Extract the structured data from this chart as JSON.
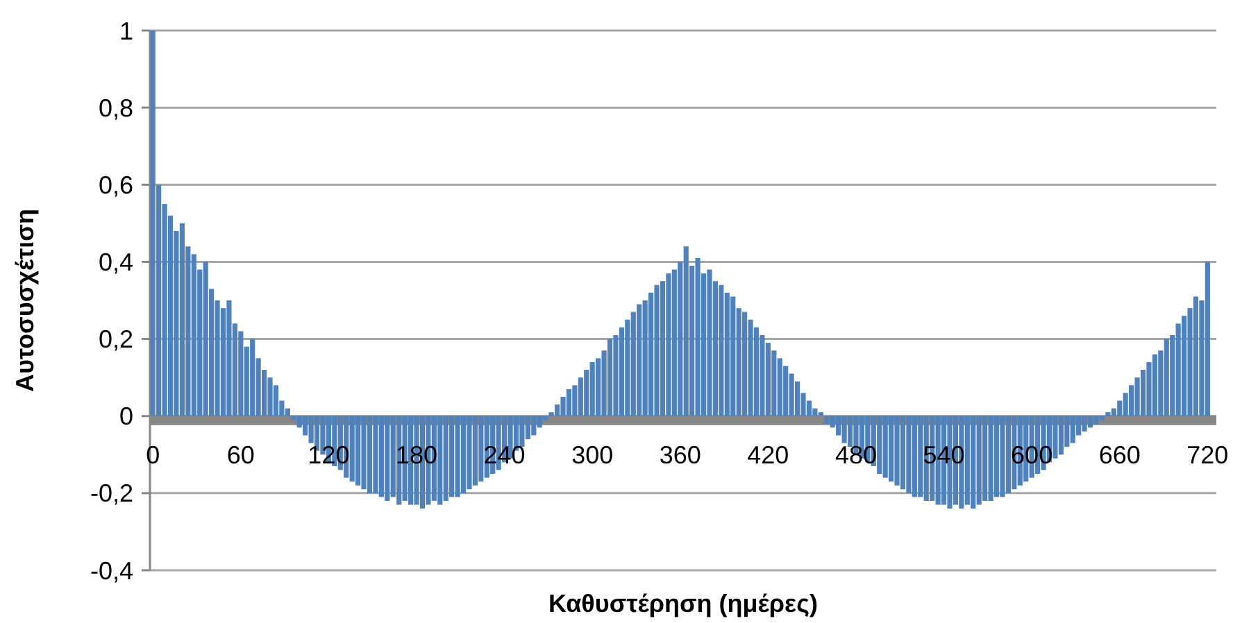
{
  "chart_data": {
    "type": "bar",
    "xlabel": "Καθυστέρηση (ημέρες)",
    "ylabel": "Αυτοσυσχέτιση",
    "x": [
      0,
      4,
      8,
      12,
      16,
      20,
      24,
      28,
      32,
      36,
      40,
      44,
      48,
      52,
      56,
      60,
      64,
      68,
      72,
      76,
      80,
      84,
      88,
      92,
      96,
      100,
      104,
      108,
      112,
      116,
      120,
      124,
      128,
      132,
      136,
      140,
      144,
      148,
      152,
      156,
      160,
      164,
      168,
      172,
      176,
      180,
      184,
      188,
      192,
      196,
      200,
      204,
      208,
      212,
      216,
      220,
      224,
      228,
      232,
      236,
      240,
      244,
      248,
      252,
      256,
      260,
      264,
      268,
      272,
      276,
      280,
      284,
      288,
      292,
      296,
      300,
      304,
      308,
      312,
      316,
      320,
      324,
      328,
      332,
      336,
      340,
      344,
      348,
      352,
      356,
      360,
      364,
      368,
      372,
      376,
      380,
      384,
      388,
      392,
      396,
      400,
      404,
      408,
      412,
      416,
      420,
      424,
      428,
      432,
      436,
      440,
      444,
      448,
      452,
      456,
      460,
      464,
      468,
      472,
      476,
      480,
      484,
      488,
      492,
      496,
      500,
      504,
      508,
      512,
      516,
      520,
      524,
      528,
      532,
      536,
      540,
      544,
      548,
      552,
      556,
      560,
      564,
      568,
      572,
      576,
      580,
      584,
      588,
      592,
      596,
      600,
      604,
      608,
      612,
      616,
      620,
      624,
      628,
      632,
      636,
      640,
      644,
      648,
      652,
      656,
      660,
      664,
      668,
      672,
      676,
      680,
      684,
      688,
      692,
      696,
      700,
      704,
      708,
      712,
      716,
      720
    ],
    "values": [
      1,
      0.6,
      0.55,
      0.52,
      0.48,
      0.5,
      0.44,
      0.42,
      0.38,
      0.4,
      0.33,
      0.3,
      0.28,
      0.3,
      0.24,
      0.22,
      0.18,
      0.2,
      0.15,
      0.12,
      0.1,
      0.08,
      0.04,
      0.02,
      -0.01,
      -0.03,
      -0.05,
      -0.07,
      -0.09,
      -0.1,
      -0.12,
      -0.13,
      -0.14,
      -0.16,
      -0.17,
      -0.18,
      -0.19,
      -0.2,
      -0.2,
      -0.21,
      -0.22,
      -0.21,
      -0.23,
      -0.22,
      -0.23,
      -0.23,
      -0.24,
      -0.23,
      -0.22,
      -0.23,
      -0.22,
      -0.21,
      -0.21,
      -0.2,
      -0.19,
      -0.18,
      -0.17,
      -0.16,
      -0.15,
      -0.14,
      -0.12,
      -0.11,
      -0.09,
      -0.08,
      -0.06,
      -0.05,
      -0.03,
      -0.01,
      0.01,
      0.03,
      0.05,
      0.07,
      0.08,
      0.1,
      0.12,
      0.14,
      0.15,
      0.17,
      0.2,
      0.21,
      0.23,
      0.25,
      0.27,
      0.29,
      0.3,
      0.32,
      0.34,
      0.35,
      0.37,
      0.38,
      0.4,
      0.44,
      0.39,
      0.41,
      0.37,
      0.38,
      0.35,
      0.34,
      0.32,
      0.31,
      0.28,
      0.27,
      0.25,
      0.23,
      0.21,
      0.19,
      0.17,
      0.15,
      0.13,
      0.11,
      0.09,
      0.06,
      0.04,
      0.02,
      0.01,
      -0.02,
      -0.03,
      -0.05,
      -0.07,
      -0.08,
      -0.1,
      -0.11,
      -0.12,
      -0.13,
      -0.15,
      -0.16,
      -0.17,
      -0.18,
      -0.19,
      -0.2,
      -0.21,
      -0.21,
      -0.22,
      -0.22,
      -0.23,
      -0.23,
      -0.24,
      -0.23,
      -0.24,
      -0.23,
      -0.24,
      -0.23,
      -0.22,
      -0.22,
      -0.21,
      -0.21,
      -0.2,
      -0.19,
      -0.18,
      -0.17,
      -0.16,
      -0.15,
      -0.14,
      -0.12,
      -0.11,
      -0.1,
      -0.08,
      -0.07,
      -0.05,
      -0.04,
      -0.03,
      -0.02,
      -0.01,
      0.01,
      0.02,
      0.04,
      0.06,
      0.08,
      0.1,
      0.12,
      0.14,
      0.16,
      0.17,
      0.2,
      0.21,
      0.24,
      0.26,
      0.28,
      0.31,
      0.3,
      0.4
    ],
    "color": "#4f81bd",
    "xlim": [
      -2,
      726
    ],
    "xticks": [
      0,
      60,
      120,
      180,
      240,
      300,
      360,
      420,
      480,
      540,
      600,
      660,
      720
    ],
    "ylim": [
      -0.4,
      1
    ],
    "yticks": [
      {
        "value": -0.4,
        "label": "-0,4"
      },
      {
        "value": -0.2,
        "label": "-0,2"
      },
      0,
      {
        "value": 0.2,
        "label": "0,2"
      },
      {
        "value": 0.4,
        "label": "0,4"
      },
      {
        "value": 0.6,
        "label": "0,6"
      },
      {
        "value": 0.8,
        "label": "0,8"
      },
      1
    ],
    "grid": "y"
  }
}
